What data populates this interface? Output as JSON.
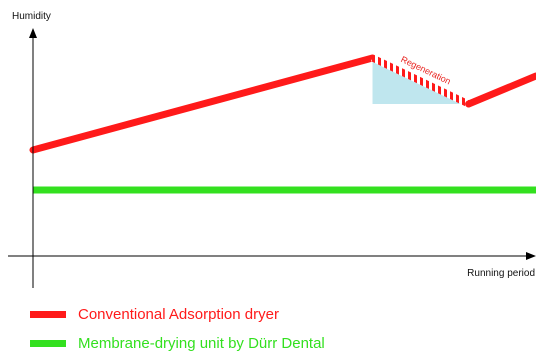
{
  "chart_data": {
    "type": "line",
    "ylabel": "Humidity",
    "xlabel": "Running period",
    "xlim": [
      0,
      100
    ],
    "ylim": [
      0,
      100
    ],
    "series": [
      {
        "name": "Conventional Adsorption dryer",
        "color": "#ff1a1a",
        "x": [
          0,
          67.5,
          86.6,
          100
        ],
        "y": [
          45,
          91,
          68,
          82
        ]
      },
      {
        "name": "Membrane-drying unit by Dürr Dental",
        "color": "#33e01f",
        "x": [
          0,
          100
        ],
        "y": [
          25,
          25
        ]
      }
    ],
    "regeneration": {
      "label": "Regeneration",
      "x": [
        67.5,
        86.6
      ],
      "shade_color": "#bfe6ee"
    }
  }
}
